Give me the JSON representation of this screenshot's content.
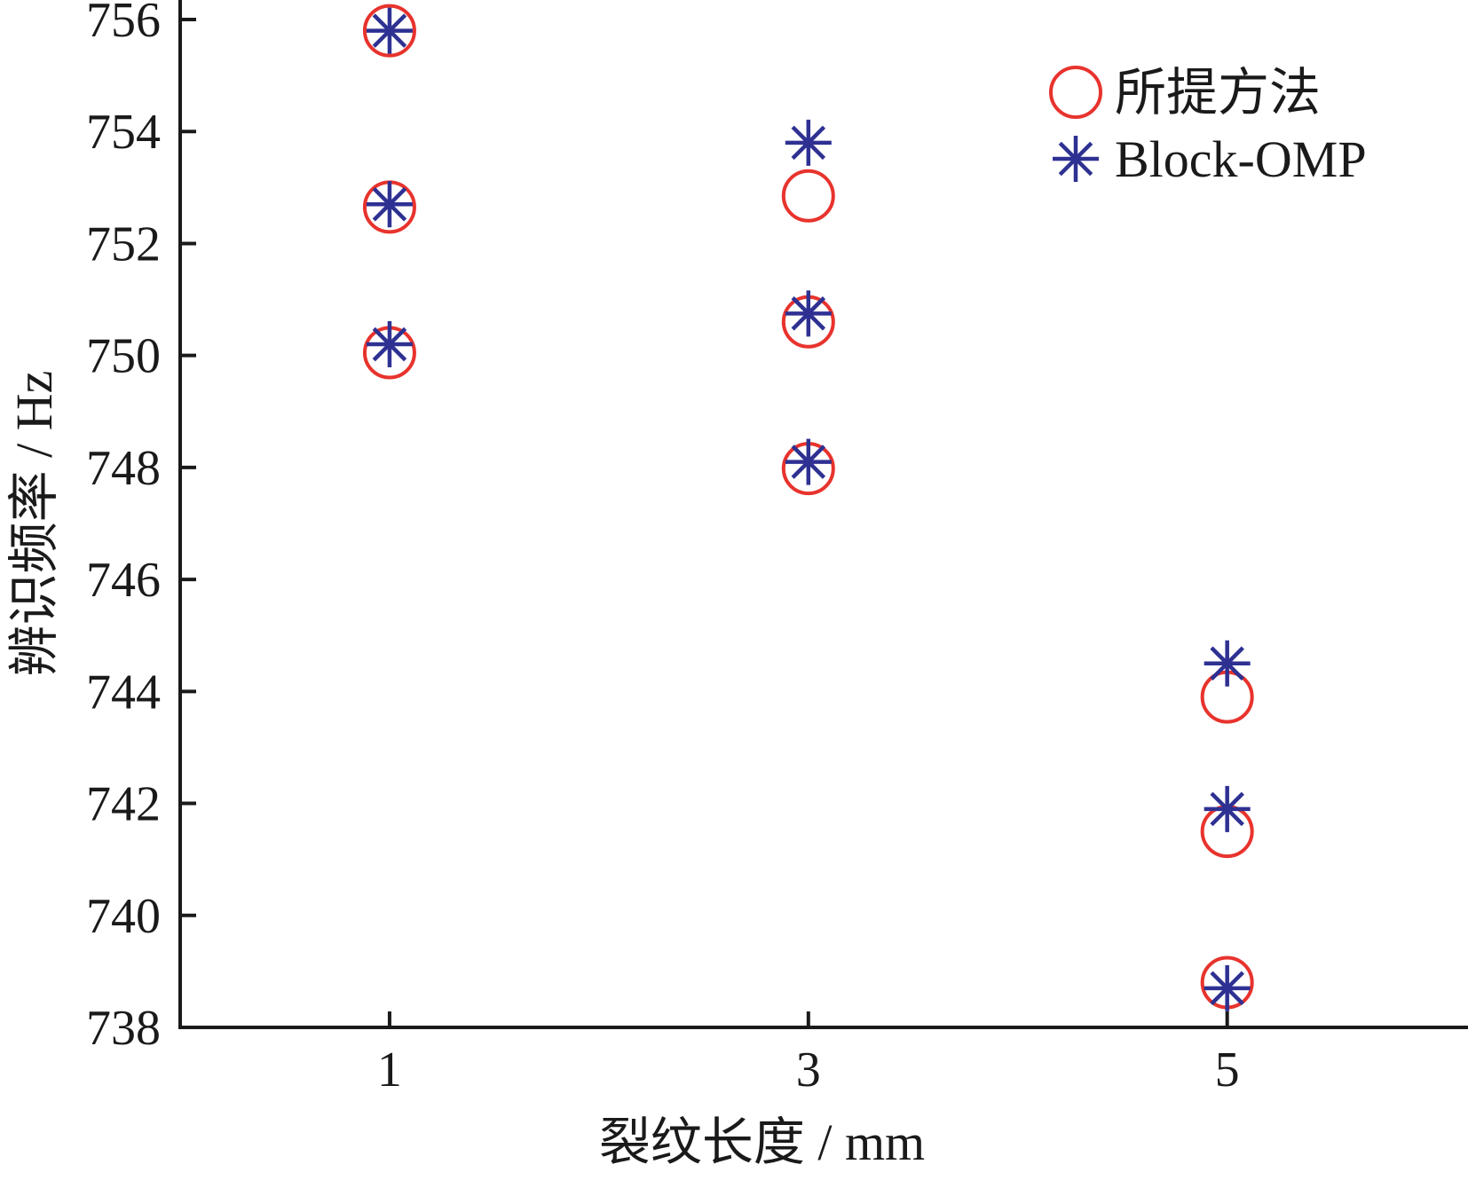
{
  "chart_data": {
    "type": "scatter",
    "xlabel": "裂纹长度 / mm",
    "ylabel": "辨识频率 / Hz",
    "x_ticks": [
      "1",
      "3",
      "5"
    ],
    "y_ticks": [
      "738",
      "740",
      "742",
      "744",
      "746",
      "748",
      "750",
      "752",
      "754",
      "756"
    ],
    "xlim": [
      0,
      6.15
    ],
    "ylim": [
      738,
      756.3
    ],
    "legend_position": "top-right",
    "series": [
      {
        "name": "所提方法",
        "marker": "circle",
        "color": "#e8332d",
        "points": [
          {
            "x": 1,
            "y": 755.8
          },
          {
            "x": 1,
            "y": 752.65
          },
          {
            "x": 1,
            "y": 750.05
          },
          {
            "x": 3,
            "y": 752.85
          },
          {
            "x": 3,
            "y": 750.6
          },
          {
            "x": 3,
            "y": 747.98
          },
          {
            "x": 5,
            "y": 743.9
          },
          {
            "x": 5,
            "y": 741.5
          },
          {
            "x": 5,
            "y": 738.8
          }
        ]
      },
      {
        "name": "Block-OMP",
        "marker": "asterisk",
        "color": "#2e3192",
        "points": [
          {
            "x": 1,
            "y": 755.8
          },
          {
            "x": 1,
            "y": 752.7
          },
          {
            "x": 1,
            "y": 750.2
          },
          {
            "x": 3,
            "y": 753.8
          },
          {
            "x": 3,
            "y": 750.75
          },
          {
            "x": 3,
            "y": 748.1
          },
          {
            "x": 5,
            "y": 744.5
          },
          {
            "x": 5,
            "y": 741.9
          },
          {
            "x": 5,
            "y": 738.7
          }
        ]
      }
    ]
  }
}
